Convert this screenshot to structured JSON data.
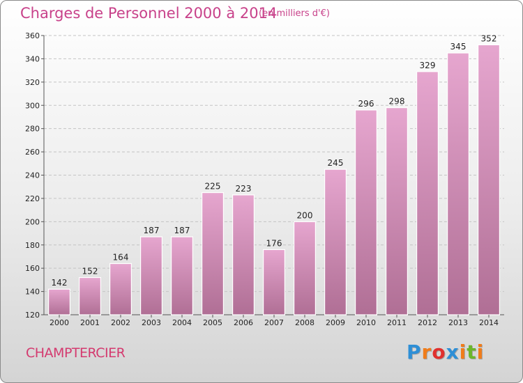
{
  "header": {
    "title": "Charges de Personnel 2000 à 2014",
    "subtitle": "(en milliers d'€)"
  },
  "footer": {
    "commune": "CHAMPTERCIER",
    "logo_letters": [
      {
        "char": "P",
        "color": "#2e8fd6"
      },
      {
        "char": "r",
        "color": "#f07c1a"
      },
      {
        "char": "o",
        "color": "#e0302e"
      },
      {
        "char": "x",
        "color": "#2e8fd6"
      },
      {
        "char": "i",
        "color": "#f07c1a"
      },
      {
        "char": "t",
        "color": "#6bb62b"
      },
      {
        "char": "i",
        "color": "#f07c1a"
      }
    ]
  },
  "chart_data": {
    "type": "bar",
    "title": "Charges de Personnel 2000 à 2014",
    "subtitle": "(en milliers d'€)",
    "categories": [
      "2000",
      "2001",
      "2002",
      "2003",
      "2004",
      "2005",
      "2006",
      "2007",
      "2008",
      "2009",
      "2010",
      "2011",
      "2012",
      "2013",
      "2014"
    ],
    "values": [
      142,
      152,
      164,
      187,
      187,
      225,
      223,
      176,
      200,
      245,
      296,
      298,
      329,
      345,
      352
    ],
    "ylim": [
      120,
      360
    ],
    "yticks": [
      120,
      140,
      160,
      180,
      200,
      220,
      240,
      260,
      280,
      300,
      320,
      340,
      360
    ],
    "grid": true,
    "bar_color": "#d88fbb",
    "data_labels": true
  }
}
